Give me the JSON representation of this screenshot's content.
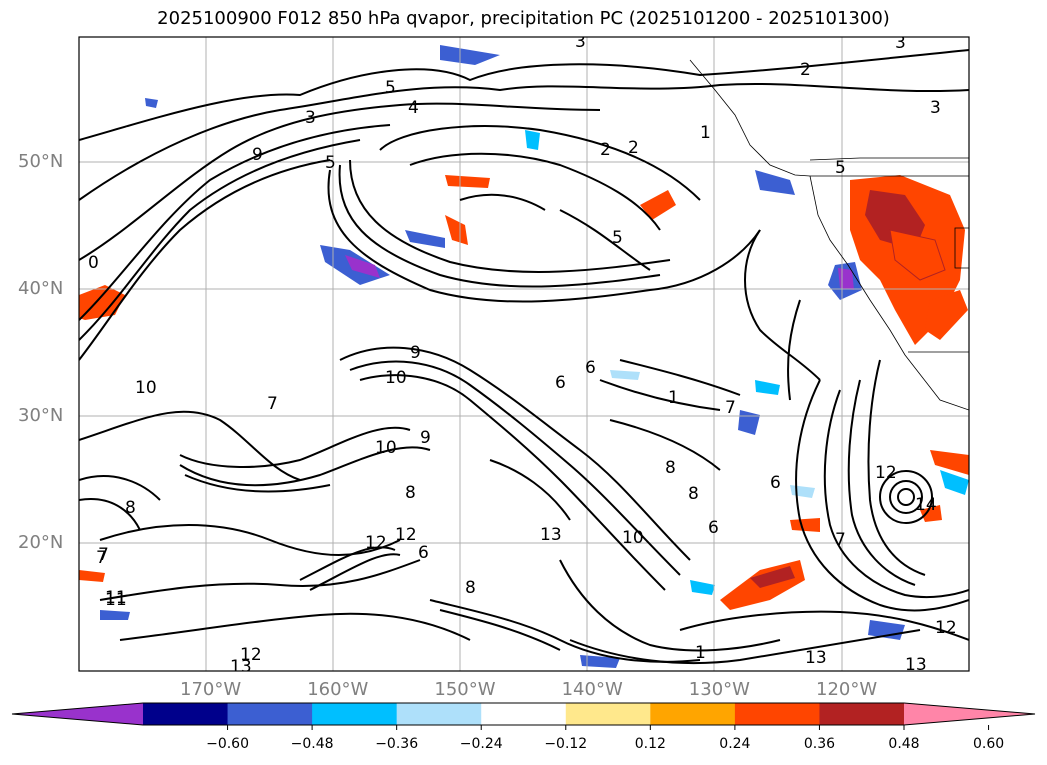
{
  "title": "2025100900 F012 850 hPa qvapor, precipitation PC (2025101200 - 2025101300)",
  "map": {
    "lat_labels": [
      {
        "text": "50°N",
        "lat": 50
      },
      {
        "text": "40°N",
        "lat": 40
      },
      {
        "text": "30°N",
        "lat": 30
      },
      {
        "text": "20°N",
        "lat": 20
      }
    ],
    "lon_labels": [
      {
        "text": "170°W",
        "lon": -170
      },
      {
        "text": "160°W",
        "lon": -160
      },
      {
        "text": "150°W",
        "lon": -150
      },
      {
        "text": "140°W",
        "lon": -140
      },
      {
        "text": "130°W",
        "lon": -130
      },
      {
        "text": "120°W",
        "lon": -120
      }
    ],
    "contour_labels": [
      "3",
      "3",
      "3",
      "3",
      "4",
      "5",
      "5",
      "5",
      "2",
      "2",
      "2",
      "1",
      "1",
      "0",
      "9",
      "10",
      "10",
      "10",
      "9",
      "9",
      "6",
      "6",
      "7",
      "7",
      "7",
      "6",
      "6",
      "6",
      "8",
      "8",
      "8",
      "8",
      "8",
      "10",
      "11",
      "12",
      "12",
      "13",
      "13",
      "13",
      "13",
      "12",
      "12",
      "12",
      "14",
      "11",
      "7",
      "7",
      "1",
      "5"
    ]
  },
  "colorbar": {
    "ticks": [
      "−0.60",
      "−0.48",
      "−0.36",
      "−0.24",
      "−0.12",
      "0.12",
      "0.24",
      "0.36",
      "0.48",
      "0.60"
    ],
    "colors": [
      "#9932cc",
      "#00008b",
      "#3c5fd2",
      "#00bfff",
      "#aee0fa",
      "#ffffff",
      "#ffe88c",
      "#ffa500",
      "#ff4500",
      "#b22222",
      "#ff85a8"
    ]
  }
}
